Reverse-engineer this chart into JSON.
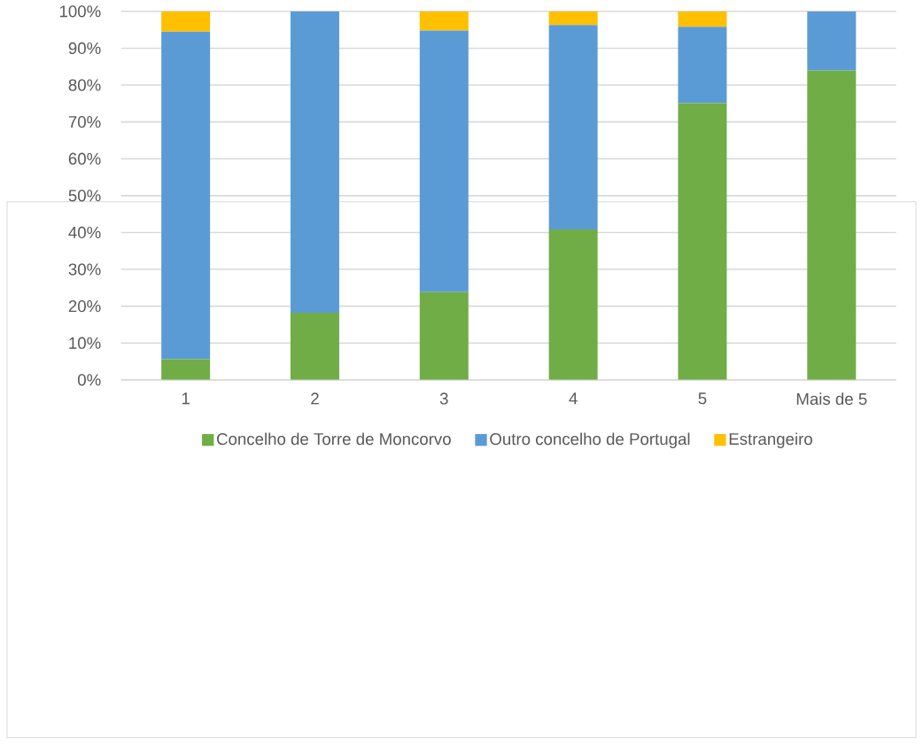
{
  "chart_data": {
    "type": "bar",
    "stacked": true,
    "categories": [
      "1",
      "2",
      "3",
      "4",
      "5",
      "Mais de 5"
    ],
    "series": [
      {
        "name": "Concelho de Torre de Moncorvo",
        "color": "#70ad47",
        "values": [
          5.6,
          18.2,
          23.8,
          40.8,
          75.1,
          84.0
        ]
      },
      {
        "name": "Outro concelho de Portugal",
        "color": "#5b9bd5",
        "values": [
          88.9,
          81.8,
          71.0,
          55.5,
          20.7,
          16.0
        ]
      },
      {
        "name": "Estrangeiro",
        "color": "#ffc000",
        "values": [
          5.5,
          0,
          5.2,
          3.7,
          4.2,
          0
        ]
      }
    ],
    "ylim": [
      0,
      100
    ],
    "yticks": [
      {
        "value": 0,
        "label": "0%"
      },
      {
        "value": 10,
        "label": "10%"
      },
      {
        "value": 20,
        "label": "20%"
      },
      {
        "value": 30,
        "label": "30%"
      },
      {
        "value": 40,
        "label": "40%"
      },
      {
        "value": 50,
        "label": "50%"
      },
      {
        "value": 60,
        "label": "60%"
      },
      {
        "value": 70,
        "label": "70%"
      },
      {
        "value": 80,
        "label": "80%"
      },
      {
        "value": 90,
        "label": "90%"
      },
      {
        "value": 100,
        "label": "100%"
      }
    ],
    "grid": "y",
    "legend": "bottom"
  }
}
